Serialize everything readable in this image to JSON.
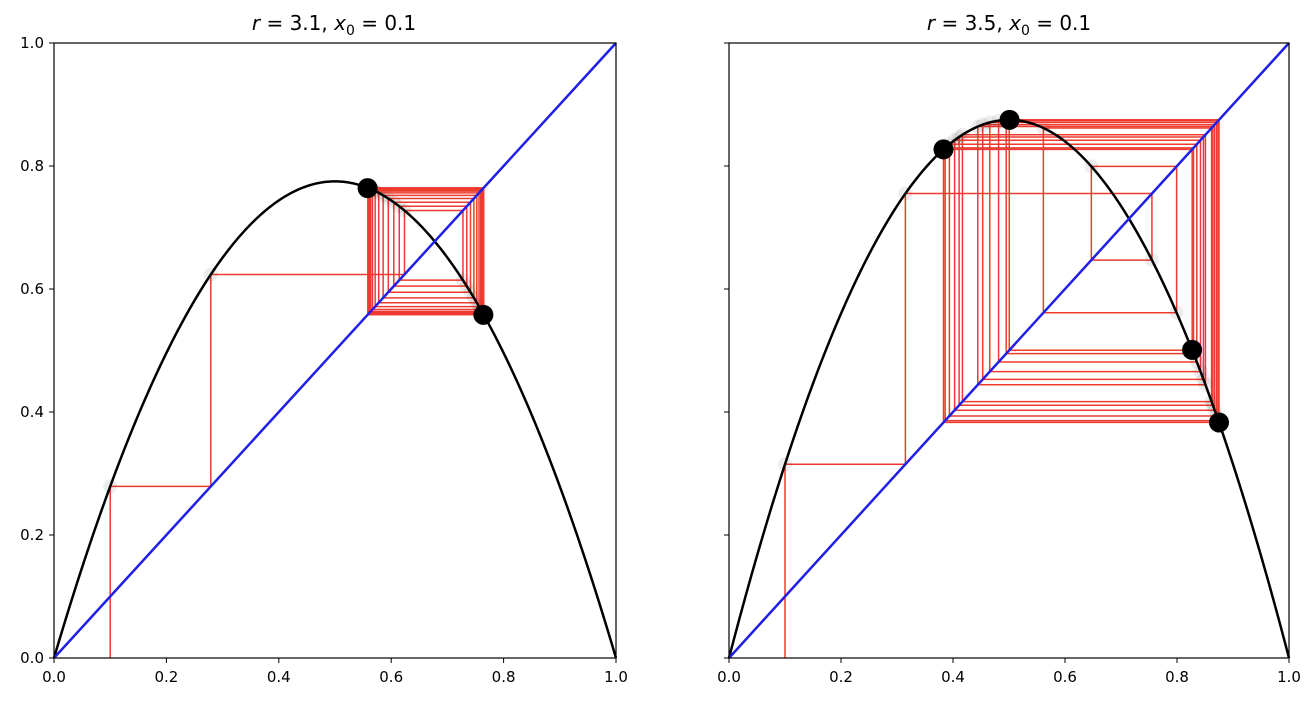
{
  "chart_data": [
    {
      "type": "line",
      "title": "r = 3.1, x0 = 0.1",
      "r": 3.1,
      "x0": 0.1,
      "xlim": [
        0,
        1
      ],
      "ylim": [
        0,
        1
      ],
      "xticks": [
        "0.0",
        "0.2",
        "0.4",
        "0.6",
        "0.8",
        "1.0"
      ],
      "yticks": [
        "0.0",
        "0.2",
        "0.4",
        "0.6",
        "0.8",
        "1.0"
      ],
      "show_yticklabels": true,
      "grid": false,
      "series": [
        {
          "curve": "logistic map r*x*(1-x)",
          "color": "#000000"
        },
        {
          "curve": "diagonal y = x",
          "color": "#1f1fe8"
        },
        {
          "curve": "cobweb iteration",
          "color": "#ee3b2f",
          "iterations": 30
        }
      ],
      "attractor_points": [
        [
          0.558,
          0.764
        ],
        [
          0.764,
          0.558
        ]
      ]
    },
    {
      "type": "line",
      "title": "r = 3.5, x0 = 0.1",
      "r": 3.5,
      "x0": 0.1,
      "xlim": [
        0,
        1
      ],
      "ylim": [
        0,
        1
      ],
      "xticks": [
        "0.0",
        "0.2",
        "0.4",
        "0.6",
        "0.8",
        "1.0"
      ],
      "yticks": [
        "0.0",
        "0.2",
        "0.4",
        "0.6",
        "0.8",
        "1.0"
      ],
      "show_yticklabels": false,
      "grid": false,
      "series": [
        {
          "curve": "logistic map r*x*(1-x)",
          "color": "#000000"
        },
        {
          "curve": "diagonal y = x",
          "color": "#1f1fe8"
        },
        {
          "curve": "cobweb iteration",
          "color": "#ee3b2f",
          "iterations": 30
        }
      ],
      "attractor_points": [
        [
          0.383,
          0.827
        ],
        [
          0.501,
          0.875
        ],
        [
          0.827,
          0.501
        ],
        [
          0.875,
          0.383
        ]
      ]
    }
  ]
}
